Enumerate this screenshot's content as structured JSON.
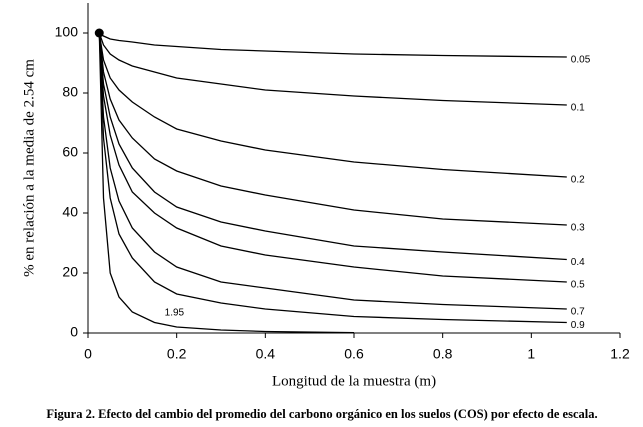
{
  "chart_data": {
    "type": "line",
    "xlabel": "Longitud de la muestra (m)",
    "ylabel": "% en relación a la media de 2.54 cm",
    "caption": "Figura 2. Efecto del cambio del promedio del carbono orgánico en los suelos (COS) por efecto de escala.",
    "x": [
      0.0254,
      0.035,
      0.05,
      0.07,
      0.1,
      0.15,
      0.2,
      0.3,
      0.4,
      0.6,
      0.8,
      1.08
    ],
    "series": [
      {
        "name": "0.05",
        "color": "#000000",
        "values": [
          100,
          99,
          98,
          97.5,
          97,
          96,
          95.5,
          94.5,
          94,
          93,
          92.5,
          92
        ]
      },
      {
        "name": "0.1",
        "color": "#000000",
        "values": [
          100,
          96,
          93,
          91,
          89,
          87,
          85,
          83,
          81,
          79,
          77.5,
          76
        ]
      },
      {
        "name": "0.2",
        "color": "#000000",
        "values": [
          100,
          91,
          85,
          81,
          77,
          72,
          68,
          64,
          61,
          57,
          54.5,
          52
        ]
      },
      {
        "name": "0.3",
        "color": "#000000",
        "values": [
          100,
          87,
          78,
          71,
          65,
          58,
          54,
          49,
          46,
          41,
          38,
          36
        ]
      },
      {
        "name": "0.4",
        "color": "#000000",
        "values": [
          100,
          83,
          72,
          63,
          55,
          47,
          42,
          37,
          34,
          29,
          27,
          24.5
        ]
      },
      {
        "name": "0.5",
        "color": "#000000",
        "values": [
          100,
          79,
          66,
          56,
          47,
          40,
          35,
          29,
          26,
          22,
          19,
          17
        ]
      },
      {
        "name": "0.7",
        "color": "#000000",
        "values": [
          100,
          72,
          55,
          44,
          35,
          27,
          22,
          17,
          15,
          11,
          9.5,
          8
        ]
      },
      {
        "name": "0.9",
        "color": "#000000",
        "values": [
          100,
          65,
          45,
          33,
          25,
          17,
          13,
          10,
          8,
          5.5,
          4.5,
          3.5
        ]
      },
      {
        "name": "1.95",
        "color": "#000000",
        "values": [
          100,
          45,
          20,
          12,
          7,
          3.5,
          2,
          1,
          0.5,
          0.1,
          null,
          null
        ]
      }
    ],
    "xlim": [
      0,
      1.2
    ],
    "xticks": [
      0,
      0.2,
      0.4,
      0.6,
      0.8,
      1,
      1.2
    ],
    "ylim": [
      0,
      110
    ],
    "yticks": [
      0,
      20,
      40,
      60,
      80,
      100
    ],
    "grid": false
  }
}
